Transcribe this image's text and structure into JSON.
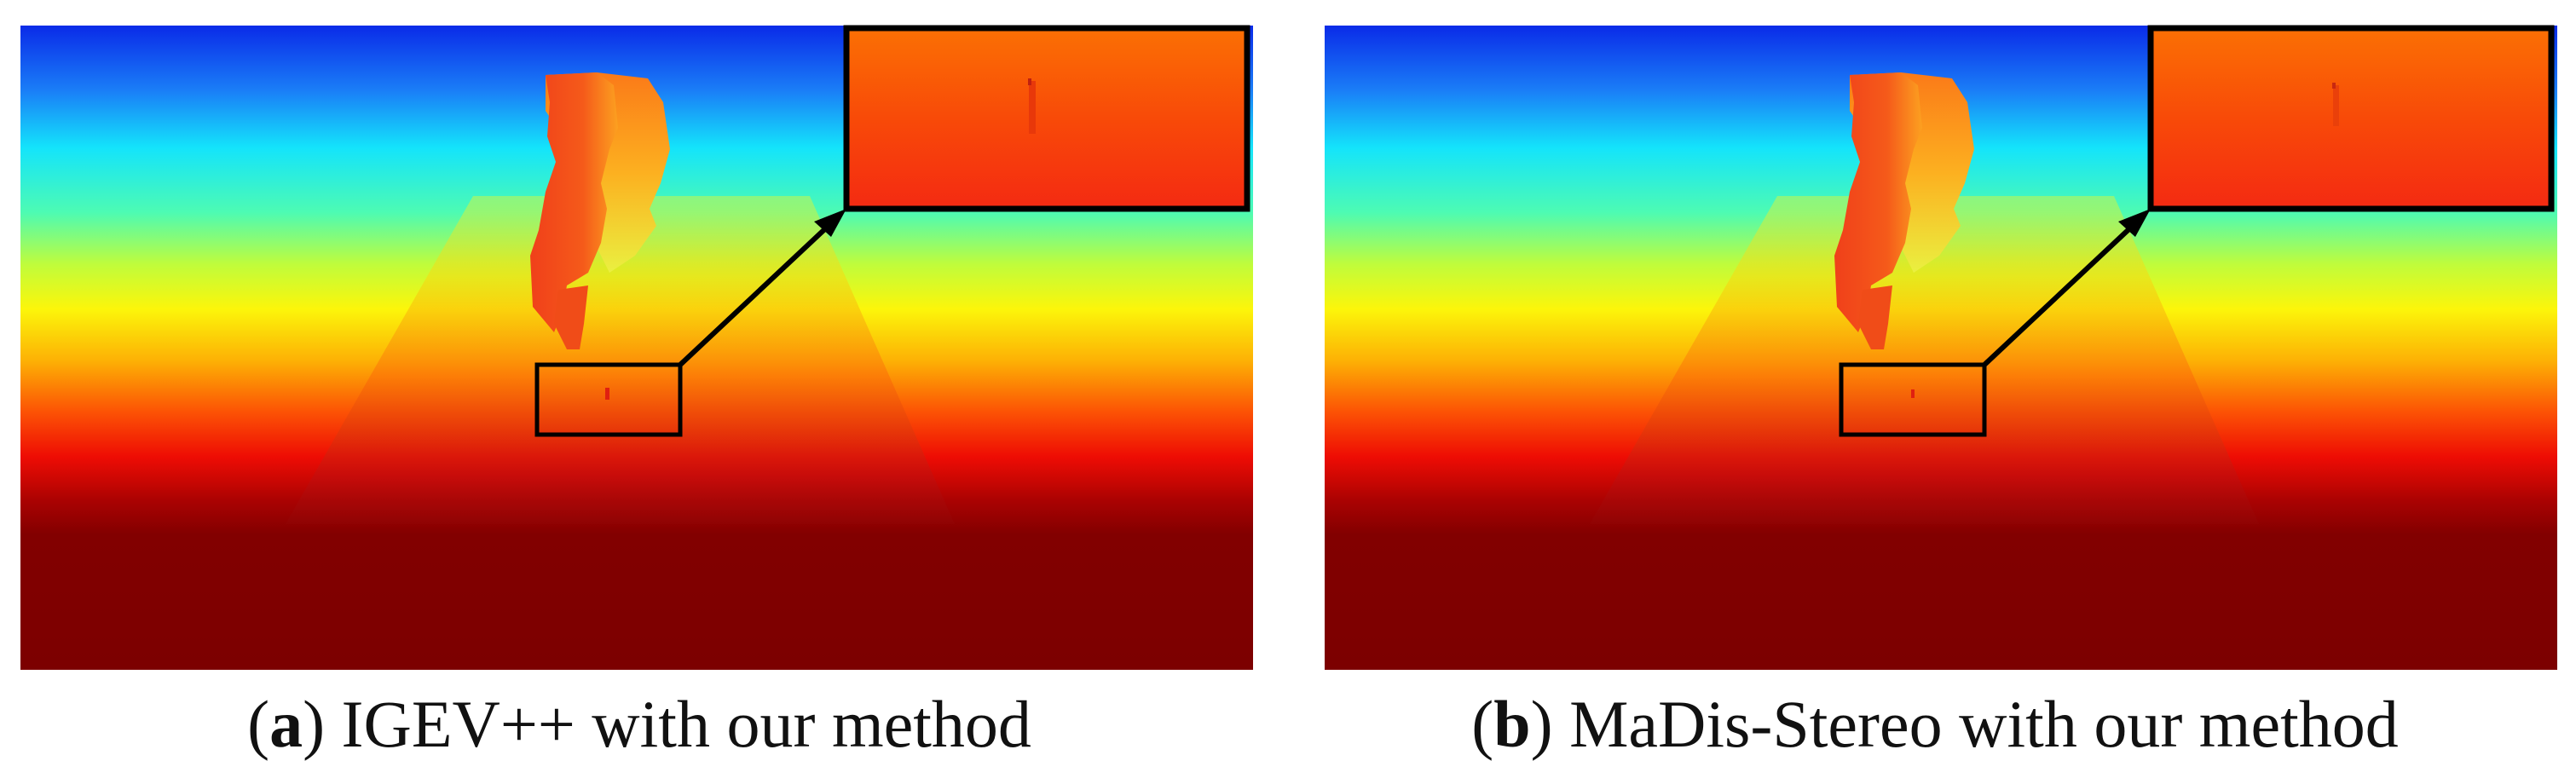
{
  "figure": {
    "panels": [
      {
        "id": "a",
        "label_letter": "a",
        "caption_text": "IGEV++ with our method",
        "colormap": "jet"
      },
      {
        "id": "b",
        "label_letter": "b",
        "caption_text": "MaDis-Stereo with our method",
        "colormap": "jet"
      }
    ],
    "annotation_color": "#000000"
  }
}
